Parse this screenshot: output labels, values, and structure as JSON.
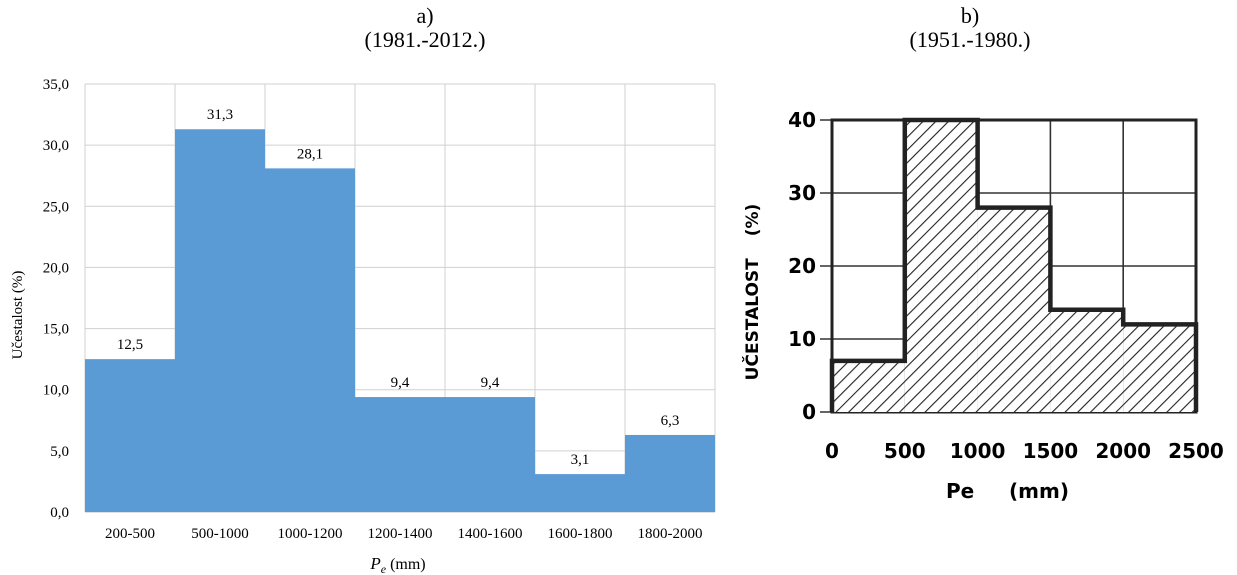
{
  "chart_data": [
    {
      "type": "bar",
      "panel_label": "a)",
      "title": "(1981.-2012.)",
      "categories": [
        "200-500",
        "500-1000",
        "1000-1200",
        "1200-1400",
        "1400-1600",
        "1600-1800",
        "1800-2000"
      ],
      "values": [
        12.5,
        31.3,
        28.1,
        9.4,
        9.4,
        3.1,
        6.3
      ],
      "value_labels": [
        "12,5",
        "31,3",
        "28,1",
        "9,4",
        "9,4",
        "3,1",
        "6,3"
      ],
      "xlabel_main": "P",
      "xlabel_sub": "e",
      "xlabel_unit": " (mm)",
      "ylabel": "Učestalost (%)",
      "ylim": [
        0,
        35
      ],
      "yticks": [
        "0,0",
        "5,0",
        "10,0",
        "15,0",
        "20,0",
        "25,0",
        "30,0",
        "35,0"
      ],
      "grid": true,
      "bar_color": "#5b9bd5"
    },
    {
      "type": "bar",
      "panel_label": "b)",
      "title": "(1951.-1980.)",
      "bin_edges": [
        0,
        500,
        1000,
        1500,
        2000,
        2500
      ],
      "values": [
        7,
        40,
        28,
        14,
        12
      ],
      "xticks": [
        "0",
        "500",
        "1000",
        "1500",
        "2000",
        "2500"
      ],
      "yticks": [
        "0",
        "10",
        "20",
        "30",
        "40"
      ],
      "xlabel": "Pe     (mm)",
      "ylabel_main": "UČESTALOST",
      "ylabel_unit": "(%)",
      "ylim": [
        0,
        40
      ],
      "xlim": [
        0,
        2500
      ],
      "grid": true,
      "fill": "hatched"
    }
  ]
}
